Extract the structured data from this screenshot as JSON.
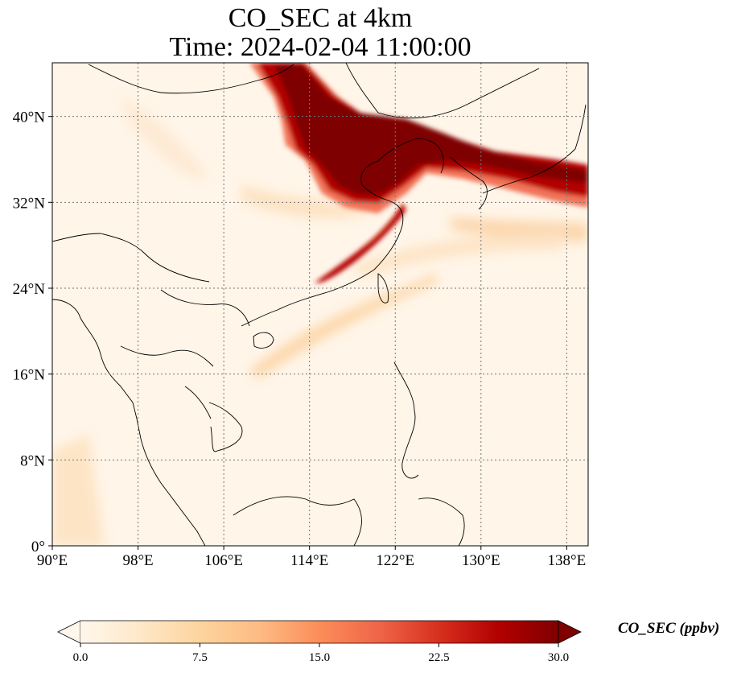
{
  "title": {
    "line1": "CO_SEC at 4km",
    "line2": "Time: 2024-02-04 11:00:00"
  },
  "map": {
    "lon_range": [
      90,
      140
    ],
    "lat_range": [
      0,
      45
    ],
    "gridlines": true,
    "lon_ticks": [
      "90°E",
      "98°E",
      "106°E",
      "114°E",
      "122°E",
      "130°E",
      "138°E"
    ],
    "lat_ticks": [
      "0°",
      "8°N",
      "16°N",
      "24°N",
      "32°N",
      "40°N"
    ],
    "variable": "CO_SEC",
    "level": "4km",
    "plume_description_color": "#7f0000"
  },
  "colorbar": {
    "label": "CO_SEC (ppbv)",
    "ticks": [
      "0.0",
      "7.5",
      "15.0",
      "22.5",
      "30.0"
    ],
    "range": [
      0,
      30
    ],
    "extend": "both",
    "colors": [
      "#fff7ec",
      "#fee8c8",
      "#fdd49e",
      "#fdbb84",
      "#fc8d59",
      "#ef6548",
      "#d7301f",
      "#b30000",
      "#7f0000"
    ]
  }
}
